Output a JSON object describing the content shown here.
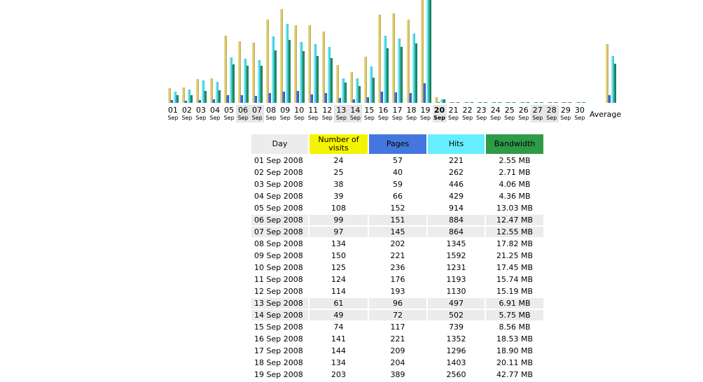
{
  "colors": {
    "visits": "#f4f400",
    "pages": "#4477dd",
    "hits": "#66eeff",
    "bandwidth": "#2f9a47"
  },
  "chart_data": {
    "type": "bar",
    "title": "",
    "categories": [
      "01",
      "02",
      "03",
      "04",
      "05",
      "06",
      "07",
      "08",
      "09",
      "10",
      "11",
      "12",
      "13",
      "14",
      "15",
      "16",
      "17",
      "18",
      "19",
      "20",
      "21",
      "22",
      "23",
      "24",
      "25",
      "26",
      "27",
      "28",
      "29",
      "30"
    ],
    "month_label": "Sep",
    "weekend_days": [
      "06",
      "07",
      "13",
      "14",
      "20",
      "27",
      "28"
    ],
    "today": "20",
    "series": [
      {
        "name": "Number of visits",
        "values": [
          24,
          25,
          38,
          39,
          108,
          99,
          97,
          134,
          150,
          125,
          124,
          114,
          61,
          49,
          74,
          141,
          144,
          134,
          203,
          9,
          0,
          0,
          0,
          0,
          0,
          0,
          0,
          0,
          0,
          0
        ]
      },
      {
        "name": "Pages",
        "values": [
          57,
          40,
          59,
          66,
          152,
          151,
          145,
          202,
          221,
          236,
          176,
          193,
          96,
          72,
          117,
          221,
          209,
          204,
          389,
          4,
          0,
          0,
          0,
          0,
          0,
          0,
          0,
          0,
          0,
          0
        ]
      },
      {
        "name": "Hits",
        "values": [
          221,
          262,
          446,
          429,
          914,
          884,
          864,
          1345,
          1592,
          1231,
          1193,
          1130,
          497,
          502,
          739,
          1352,
          1296,
          1403,
          2560,
          70,
          0,
          0,
          0,
          0,
          0,
          0,
          0,
          0,
          0,
          0
        ]
      },
      {
        "name": "Bandwidth (MB)",
        "values": [
          2.55,
          2.71,
          4.06,
          4.36,
          13.03,
          12.47,
          12.55,
          17.82,
          21.25,
          17.45,
          15.74,
          15.19,
          6.91,
          5.75,
          8.56,
          18.53,
          18.9,
          20.11,
          42.77,
          1.2,
          0,
          0,
          0,
          0,
          0,
          0,
          0,
          0,
          0,
          0
        ]
      }
    ],
    "average": {
      "label": "Average",
      "visits": 94,
      "pages": 160,
      "hits": 950,
      "bandwidth": 13.2
    }
  },
  "table": {
    "headers": [
      "Day",
      "Number of visits",
      "Pages",
      "Hits",
      "Bandwidth"
    ],
    "rows": [
      [
        "01 Sep 2008",
        "24",
        "57",
        "221",
        "2.55 MB"
      ],
      [
        "02 Sep 2008",
        "25",
        "40",
        "262",
        "2.71 MB"
      ],
      [
        "03 Sep 2008",
        "38",
        "59",
        "446",
        "4.06 MB"
      ],
      [
        "04 Sep 2008",
        "39",
        "66",
        "429",
        "4.36 MB"
      ],
      [
        "05 Sep 2008",
        "108",
        "152",
        "914",
        "13.03 MB"
      ],
      [
        "06 Sep 2008",
        "99",
        "151",
        "884",
        "12.47 MB"
      ],
      [
        "07 Sep 2008",
        "97",
        "145",
        "864",
        "12.55 MB"
      ],
      [
        "08 Sep 2008",
        "134",
        "202",
        "1345",
        "17.82 MB"
      ],
      [
        "09 Sep 2008",
        "150",
        "221",
        "1592",
        "21.25 MB"
      ],
      [
        "10 Sep 2008",
        "125",
        "236",
        "1231",
        "17.45 MB"
      ],
      [
        "11 Sep 2008",
        "124",
        "176",
        "1193",
        "15.74 MB"
      ],
      [
        "12 Sep 2008",
        "114",
        "193",
        "1130",
        "15.19 MB"
      ],
      [
        "13 Sep 2008",
        "61",
        "96",
        "497",
        "6.91 MB"
      ],
      [
        "14 Sep 2008",
        "49",
        "72",
        "502",
        "5.75 MB"
      ],
      [
        "15 Sep 2008",
        "74",
        "117",
        "739",
        "8.56 MB"
      ],
      [
        "16 Sep 2008",
        "141",
        "221",
        "1352",
        "18.53 MB"
      ],
      [
        "17 Sep 2008",
        "144",
        "209",
        "1296",
        "18.90 MB"
      ],
      [
        "18 Sep 2008",
        "134",
        "204",
        "1403",
        "20.11 MB"
      ],
      [
        "19 Sep 2008",
        "203",
        "389",
        "2560",
        "42.77 MB"
      ]
    ],
    "weekend_rows": [
      5,
      6,
      12,
      13
    ]
  }
}
